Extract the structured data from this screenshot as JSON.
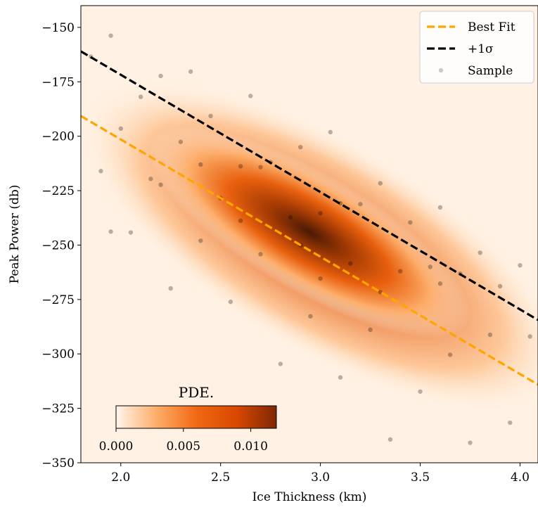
{
  "chart_data": {
    "type": "scatter",
    "xlabel": "Ice Thickness (km)",
    "ylabel": "Peak Power (db)",
    "xlim": [
      1.8,
      4.09
    ],
    "ylim": [
      -350,
      -140
    ],
    "xticks": [
      {
        "value": 2,
        "label": "2.0"
      },
      {
        "value": 2.5,
        "label": "2.5"
      },
      {
        "value": 3,
        "label": "3.0"
      },
      {
        "value": 3.5,
        "label": "3.5"
      },
      {
        "value": 4,
        "label": "4.0"
      }
    ],
    "yticks": [
      {
        "value": -350,
        "label": "−350"
      },
      {
        "value": -325,
        "label": "−325"
      },
      {
        "value": -300,
        "label": "−300"
      },
      {
        "value": -275,
        "label": "−275"
      },
      {
        "value": -250,
        "label": "−250"
      },
      {
        "value": -225,
        "label": "−225"
      },
      {
        "value": -200,
        "label": "−200"
      },
      {
        "value": -175,
        "label": "−175"
      },
      {
        "value": -150,
        "label": "−150"
      }
    ],
    "legend": "upper right",
    "series": [
      {
        "name": "Best Fit",
        "kind": "line",
        "color": "#ffa500",
        "x": [
          1.8,
          4.09
        ],
        "values": [
          -190.7,
          -314.1
        ]
      },
      {
        "name": "+1σ",
        "kind": "line",
        "color": "#000000",
        "x": [
          1.8,
          4.09
        ],
        "values": [
          -161.0,
          -284.4
        ]
      },
      {
        "name": "Sample",
        "kind": "points",
        "color": "#000000",
        "x": [
          1.85,
          1.9,
          1.95,
          2.0,
          2.05,
          2.1,
          2.15,
          2.2,
          2.25,
          2.3,
          2.35,
          2.4,
          2.45,
          2.5,
          2.55,
          2.6,
          2.65,
          2.7,
          2.75,
          2.8,
          2.85,
          2.9,
          2.95,
          3.0,
          3.05,
          3.1,
          3.15,
          3.2,
          3.25,
          3.3,
          3.35,
          3.4,
          3.45,
          3.5,
          3.55,
          3.6,
          3.65,
          3.7,
          3.75,
          3.8,
          3.85,
          3.9,
          3.95,
          4.0,
          4.05,
          2.2,
          2.6,
          2.9,
          3.0,
          3.3,
          2.4,
          3.6,
          2.7,
          1.95,
          3.1
        ],
        "values": [
          -163.4,
          -216,
          -153.8,
          -196.5,
          -244.2,
          -181.9,
          -219.6,
          -172.3,
          -269.9,
          -202.6,
          -170.3,
          -248,
          -190.7,
          -228.4,
          -276.1,
          -213.8,
          -181.5,
          -254.2,
          -211.9,
          -304.6,
          -237.3,
          -205,
          -282.7,
          -235.4,
          -198.1,
          -310.8,
          -258.5,
          -231.2,
          -288.9,
          -221.6,
          -339.3,
          -262,
          -239.6,
          -317.3,
          -260,
          -232.7,
          -300.4,
          -263.1,
          -340.8,
          -253.5,
          -291.2,
          -268.9,
          -331.6,
          -259.3,
          -292,
          -222.3,
          -238.8,
          -250,
          -265.4,
          -271.6,
          -213,
          -267.7,
          -214.2,
          -243.8,
          -230.8
        ]
      }
    ],
    "colorbar": {
      "label": "PDE.",
      "lim": [
        0,
        0.0119
      ],
      "ticks": [
        {
          "value": 0,
          "label": "0.000"
        },
        {
          "value": 0.005,
          "label": "0.005"
        },
        {
          "value": 0.01,
          "label": "0.010"
        }
      ],
      "colors": [
        "#fff5eb",
        "#fdae6b",
        "#f16913",
        "#d94801",
        "#7f2704"
      ]
    }
  }
}
